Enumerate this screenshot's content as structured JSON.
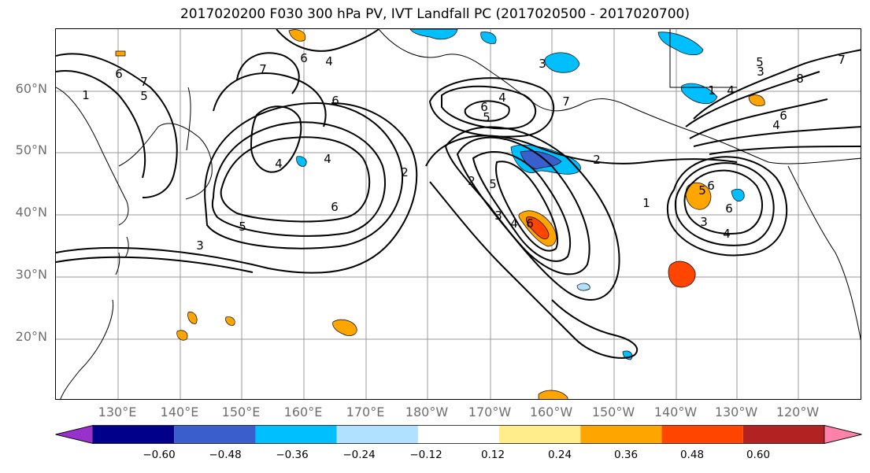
{
  "title": "2017020200 F030 300 hPa PV, IVT Landfall PC (2017020500 - 2017020700)",
  "lat_labels": [
    "60°N",
    "50°N",
    "40°N",
    "30°N",
    "20°N"
  ],
  "lon_labels": [
    "130°E",
    "140°E",
    "150°E",
    "160°E",
    "170°E",
    "180°W",
    "170°W",
    "160°W",
    "150°W",
    "140°W",
    "130°W",
    "120°W"
  ],
  "contour_labels": [
    "1",
    "7",
    "6",
    "5",
    "6",
    "4",
    "7",
    "6",
    "4",
    "4",
    "5",
    "6",
    "3",
    "2",
    "6",
    "5",
    "5",
    "3",
    "4",
    "6",
    "2",
    "1",
    "5",
    "3",
    "4",
    "6",
    "6",
    "4",
    "6",
    "8",
    "7",
    "3",
    "7",
    "1",
    "4",
    "5",
    "2",
    "3",
    "4"
  ],
  "colorbar": {
    "ticks": [
      "−0.60",
      "−0.48",
      "−0.36",
      "−0.24",
      "−0.12",
      "0.12",
      "0.24",
      "0.36",
      "0.48",
      "0.60"
    ],
    "colors": [
      "#9932cc",
      "#00008b",
      "#3a5fcd",
      "#00bfff",
      "#b0e2ff",
      "#ffffff",
      "#ffec8b",
      "#ffa500",
      "#ff4500",
      "#b22222",
      "#ff82ab"
    ]
  }
}
